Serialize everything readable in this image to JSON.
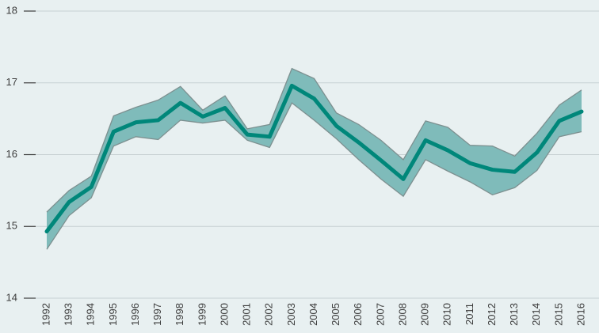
{
  "chart_data": {
    "type": "line",
    "categories": [
      "1992",
      "1993",
      "1994",
      "1995",
      "1996",
      "1997",
      "1998",
      "1999",
      "2000",
      "2001",
      "2002",
      "2003",
      "2004",
      "2005",
      "2006",
      "2007",
      "2008",
      "2009",
      "2010",
      "2011",
      "2012",
      "2013",
      "2014",
      "2015",
      "2016"
    ],
    "series": [
      {
        "color": "#00877a",
        "values": [
          14.93,
          15.34,
          15.55,
          16.32,
          16.45,
          16.48,
          16.72,
          16.53,
          16.65,
          16.28,
          16.25,
          16.96,
          16.78,
          16.4,
          16.17,
          15.92,
          15.66,
          16.2,
          16.06,
          15.88,
          15.79,
          15.76,
          16.03,
          16.47,
          16.6
        ]
      }
    ],
    "band": {
      "color": "#7fbbba",
      "edge_color": "#7d9090",
      "lower": [
        14.68,
        15.15,
        15.4,
        16.12,
        16.25,
        16.21,
        16.48,
        16.44,
        16.48,
        16.2,
        16.1,
        16.72,
        16.48,
        16.22,
        15.93,
        15.66,
        15.42,
        15.93,
        15.77,
        15.62,
        15.44,
        15.54,
        15.78,
        16.25,
        16.32
      ],
      "upper": [
        15.2,
        15.5,
        15.7,
        16.54,
        16.66,
        16.76,
        16.95,
        16.62,
        16.82,
        16.36,
        16.42,
        17.2,
        17.06,
        16.58,
        16.42,
        16.2,
        15.93,
        16.47,
        16.38,
        16.13,
        16.12,
        15.98,
        16.3,
        16.69,
        16.9
      ]
    },
    "ylim": [
      14,
      18
    ],
    "yticks": [
      14,
      15,
      16,
      17,
      18
    ],
    "grid": true
  }
}
